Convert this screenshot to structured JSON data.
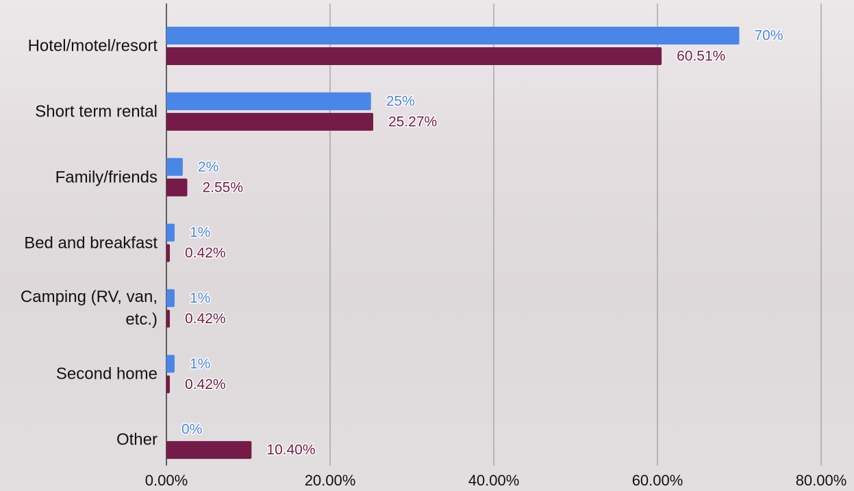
{
  "chart_data": {
    "type": "hbar",
    "categories": [
      "Hotel/motel/resort",
      "Short term rental",
      "Family/friends",
      "Bed and breakfast",
      "Camping (RV, van, etc.)",
      "Second home",
      "Other"
    ],
    "series": [
      {
        "color": "#4a86e8",
        "values": [
          70,
          25,
          2,
          1,
          1,
          1,
          0
        ],
        "value_labels": [
          "70%",
          "25%",
          "2%",
          "1%",
          "1%",
          "1%",
          "0%"
        ]
      },
      {
        "color": "#741b47",
        "values": [
          60.51,
          25.27,
          2.55,
          0.42,
          0.42,
          0.42,
          10.4
        ],
        "value_labels": [
          "60.51%",
          "25.27%",
          "2.55%",
          "0.42%",
          "0.42%",
          "0.42%",
          "10.40%"
        ]
      }
    ],
    "xlim": [
      0,
      80
    ],
    "xticks": [
      {
        "value": 0,
        "label": "0.00%"
      },
      {
        "value": 20,
        "label": "20.00%"
      },
      {
        "value": 40,
        "label": "40.00%"
      },
      {
        "value": 60,
        "label": "60.00%"
      },
      {
        "value": 80,
        "label": "80.00%"
      }
    ],
    "grid": true
  }
}
